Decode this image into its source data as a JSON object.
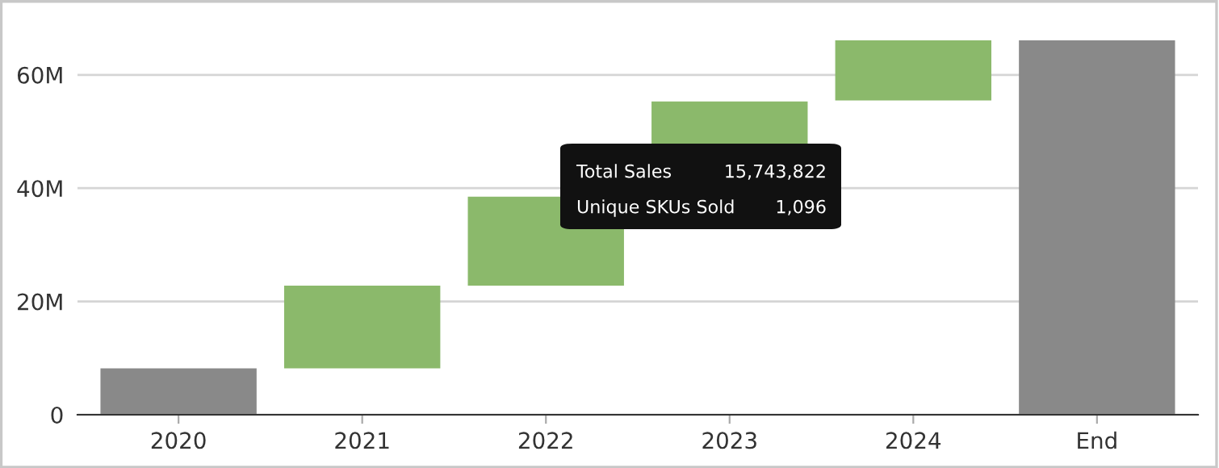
{
  "chart_data": {
    "type": "bar",
    "categories": [
      "2020",
      "2021",
      "2022",
      "2023",
      "2024",
      "End"
    ],
    "values": [
      8.2,
      14.6,
      15.7,
      16.8,
      10.6,
      66.1
    ],
    "base": [
      0,
      8.2,
      22.8,
      38.5,
      55.5,
      0
    ],
    "colors": [
      "#898989",
      "#8bb96b",
      "#8bb96b",
      "#8bb96b",
      "#8bb96b",
      "#898989"
    ],
    "ylim": [
      0,
      66.1
    ],
    "yticks": [
      0,
      {
        "value": 20,
        "label": "20M"
      },
      {
        "value": 40,
        "label": "40M"
      },
      {
        "value": 60,
        "label": "60M"
      }
    ],
    "grid": "y",
    "annotations": [
      "Total Sales",
      "15,743,822",
      "Unique SKUs Sold",
      "1,096"
    ]
  }
}
